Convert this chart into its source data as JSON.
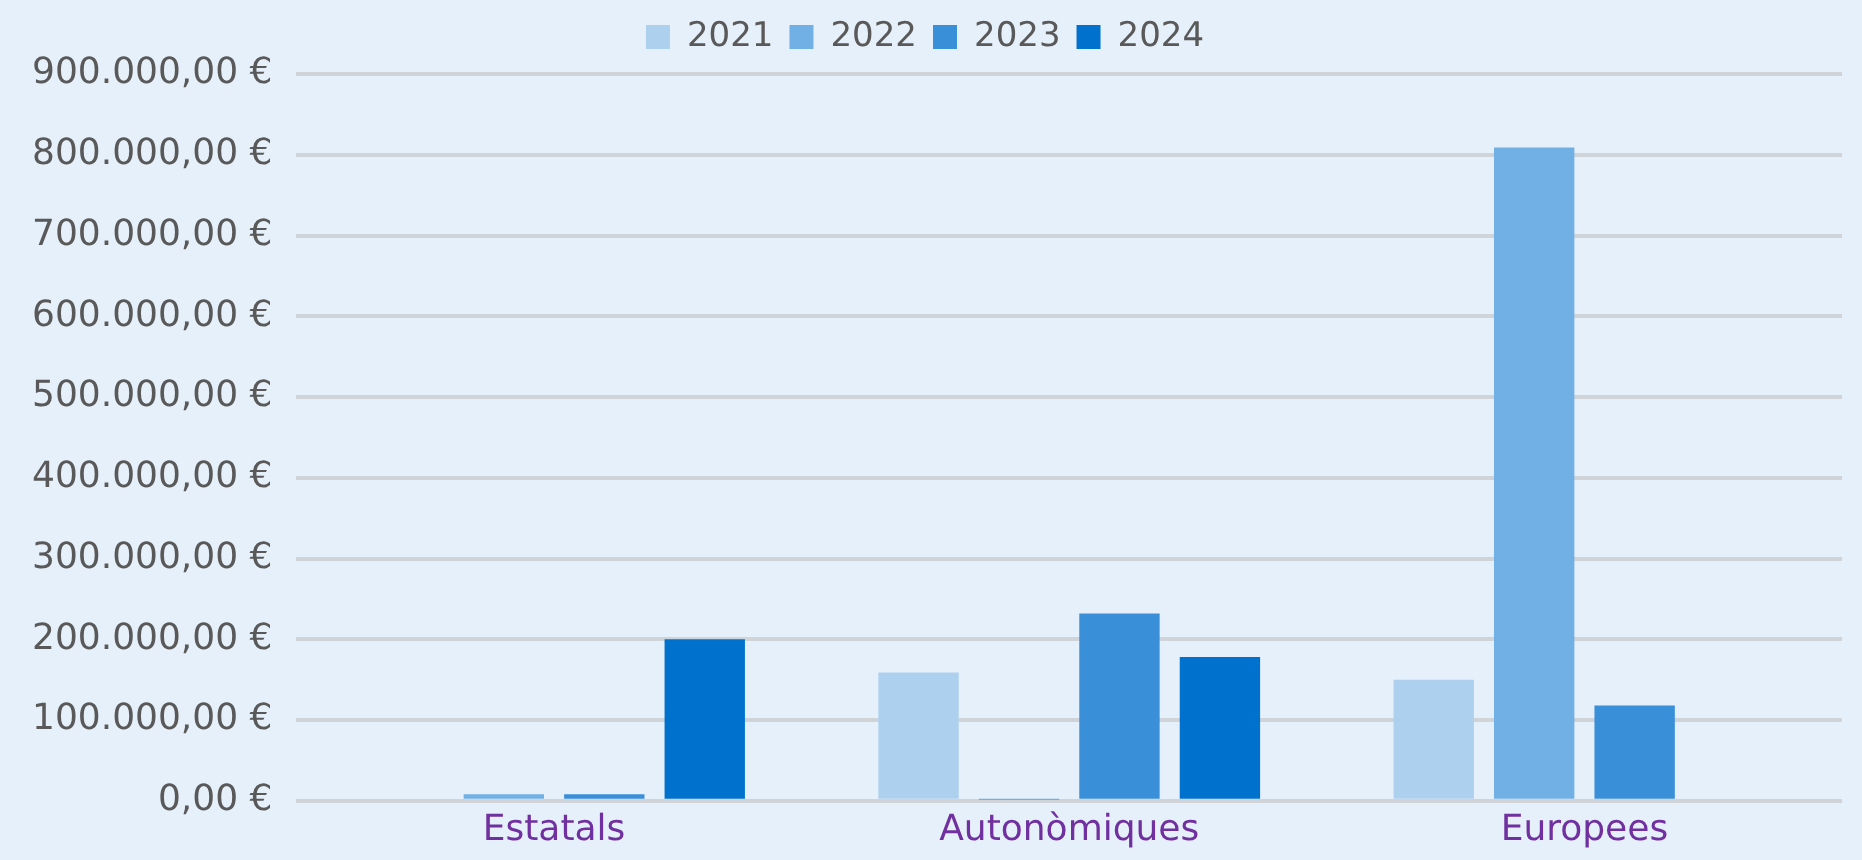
{
  "chart_data": {
    "type": "bar",
    "categories": [
      "Estatals",
      "Autonòmiques",
      "Europees"
    ],
    "series": [
      {
        "name": "2021",
        "color": "#aed0ef",
        "values": [
          0,
          159000,
          150000
        ]
      },
      {
        "name": "2022",
        "color": "#70b0e4",
        "values": [
          8000,
          1000,
          809000
        ]
      },
      {
        "name": "2023",
        "color": "#3a8fd9",
        "values": [
          8000,
          232000,
          118000
        ]
      },
      {
        "name": "2024",
        "color": "#0072ce",
        "values": [
          200000,
          178000,
          0
        ]
      }
    ],
    "ylim": [
      0,
      900000
    ],
    "yticks": [
      {
        "value": 0,
        "label": "0,00 €"
      },
      {
        "value": 100000,
        "label": "100.000,00 €"
      },
      {
        "value": 200000,
        "label": "200.000,00 €"
      },
      {
        "value": 300000,
        "label": "300.000,00 €"
      },
      {
        "value": 400000,
        "label": "400.000,00 €"
      },
      {
        "value": 500000,
        "label": "500.000,00 €"
      },
      {
        "value": 600000,
        "label": "600.000,00 €"
      },
      {
        "value": 700000,
        "label": "700.000,00 €"
      },
      {
        "value": 800000,
        "label": "800.000,00 €"
      },
      {
        "value": 900000,
        "label": "900.000,00 €"
      }
    ],
    "grid": "y",
    "legend": "top"
  }
}
